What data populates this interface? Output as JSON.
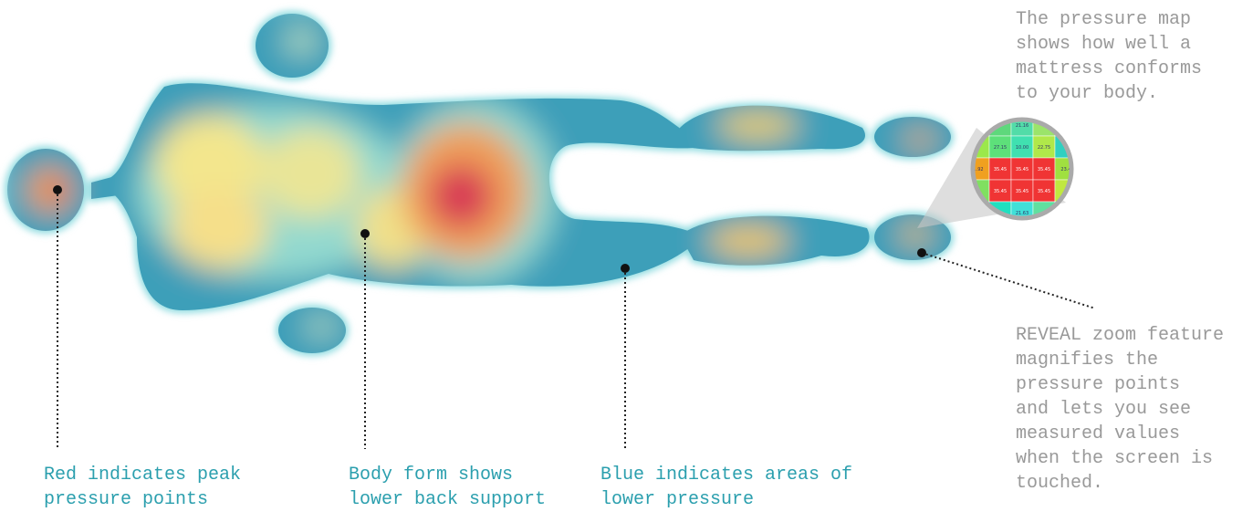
{
  "annotations": {
    "intro": {
      "lines": [
        "The pressure map",
        "shows how well a",
        "mattress conforms",
        "to your body."
      ]
    },
    "zoom": {
      "lines": [
        "REVEAL zoom feature",
        "magnifies the",
        "pressure points",
        "and lets you see",
        "measured values",
        "when the screen is",
        "touched."
      ]
    },
    "red": {
      "lines": [
        "Red indicates peak",
        "pressure points"
      ]
    },
    "body": {
      "lines": [
        "Body form shows",
        "lower back support"
      ]
    },
    "blue": {
      "lines": [
        "Blue indicates areas of",
        "lower pressure"
      ]
    }
  },
  "zoom_values": [
    "21.16",
    "27.15",
    "10.00",
    "22.75",
    "1.92",
    "35.45",
    "35.45",
    "35.45",
    "23.4",
    "35.45",
    "35.45",
    "35.45",
    "21.63"
  ]
}
